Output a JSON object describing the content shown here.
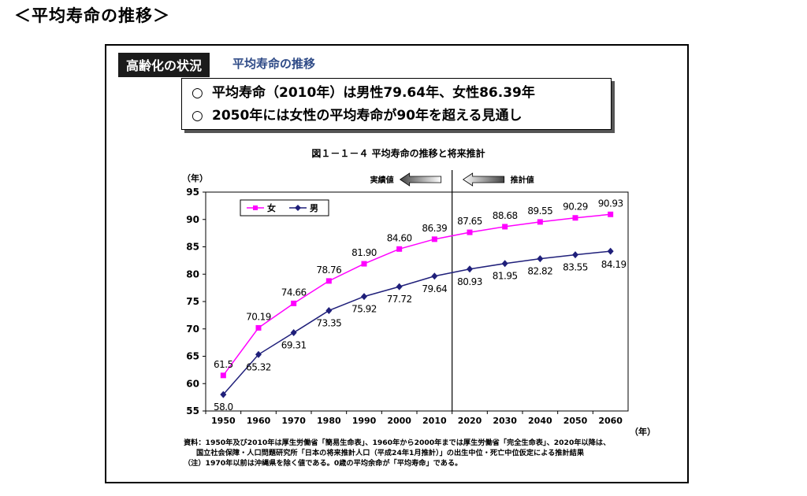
{
  "heading": "＜平均寿命の推移＞",
  "panel": {
    "label": "高齢化の状況",
    "subtitle": "平均寿命の推移"
  },
  "summary": [
    {
      "bullet": "○",
      "text": "平均寿命（2010年）は男性79.64年、女性86.39年"
    },
    {
      "bullet": "○",
      "text": "2050年には女性の平均寿命が90年を超える見通し"
    }
  ],
  "figure_title": "図１－１－４ 平均寿命の推移と将来推計",
  "annotations": {
    "actual": "実績値",
    "projected": "推計値"
  },
  "source": [
    "資料：1950年及び2010年は厚生労働省「簡易生命表」、1960年から2000年までは厚生労働省「完全生命表」、2020年以降は、",
    "国立社会保障・人口問題研究所「日本の将来推計人口（平成24年1月推計）」の出生中位・死亡中位仮定による推計結果",
    "（注）1970年以前は沖縄県を除く値である。0歳の平均余命が「平均寿命」である。"
  ],
  "colors": {
    "male": "#1f1f7a",
    "female": "#ff00ff",
    "panel_subtitle": "#2f4b87"
  },
  "chart_data": {
    "type": "line",
    "x": [
      1950,
      1960,
      1970,
      1980,
      1990,
      2000,
      2010,
      2020,
      2030,
      2040,
      2050,
      2060
    ],
    "xlabel": "（年）",
    "ylabel": "（年）",
    "ylim": [
      55,
      95
    ],
    "yticks": [
      55,
      60,
      65,
      70,
      75,
      80,
      85,
      90,
      95
    ],
    "series": [
      {
        "name": "男",
        "marker": "diamond",
        "color": "#1f1f7a",
        "values": [
          58.0,
          65.32,
          69.31,
          73.35,
          75.92,
          77.72,
          79.64,
          80.93,
          81.95,
          82.82,
          83.55,
          84.19
        ],
        "labels": [
          "58.0",
          "65.32",
          "69.31",
          "73.35",
          "75.92",
          "77.72",
          "79.64",
          "80.93",
          "81.95",
          "82.82",
          "83.55",
          "84.19"
        ]
      },
      {
        "name": "女",
        "marker": "square",
        "color": "#ff00ff",
        "values": [
          61.5,
          70.19,
          74.66,
          78.76,
          81.9,
          84.6,
          86.39,
          87.65,
          88.68,
          89.55,
          90.29,
          90.93
        ],
        "labels": [
          "61.5",
          "70.19",
          "74.66",
          "78.76",
          "81.90",
          "84.60",
          "86.39",
          "87.65",
          "88.68",
          "89.55",
          "90.29",
          "90.93"
        ]
      }
    ],
    "grid": false,
    "legend": "top-left",
    "divider_after": 2010
  }
}
